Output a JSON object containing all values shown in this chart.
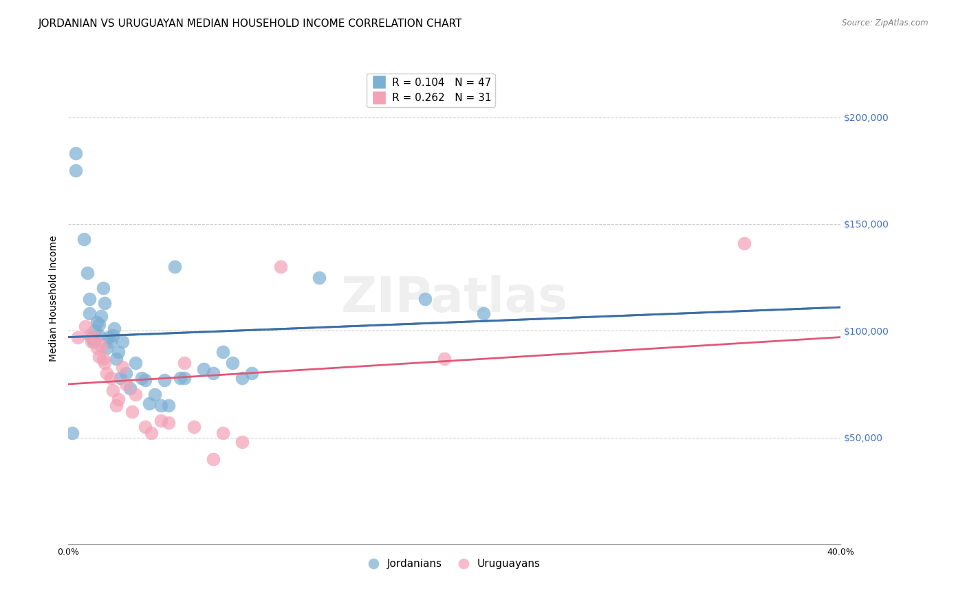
{
  "title": "JORDANIAN VS URUGUAYAN MEDIAN HOUSEHOLD INCOME CORRELATION CHART",
  "source": "Source: ZipAtlas.com",
  "xlabel_bottom": "",
  "ylabel": "Median Household Income",
  "xlim": [
    0.0,
    0.4
  ],
  "ylim": [
    0,
    230000
  ],
  "xticks": [
    0.0,
    0.05,
    0.1,
    0.15,
    0.2,
    0.25,
    0.3,
    0.35,
    0.4
  ],
  "xtick_labels": [
    "0.0%",
    "",
    "",
    "",
    "",
    "",
    "",
    "",
    "40.0%"
  ],
  "ytick_labels_right": [
    "$50,000",
    "$100,000",
    "$150,000",
    "$200,000"
  ],
  "ytick_values_right": [
    50000,
    100000,
    150000,
    200000
  ],
  "legend_entries": [
    {
      "label": "R = 0.104   N = 47",
      "color": "#7bafd4"
    },
    {
      "label": "R = 0.262   N = 31",
      "color": "#f4a0b5"
    }
  ],
  "jordanians_x": [
    0.002,
    0.004,
    0.004,
    0.008,
    0.01,
    0.011,
    0.011,
    0.012,
    0.013,
    0.014,
    0.015,
    0.016,
    0.016,
    0.017,
    0.018,
    0.019,
    0.02,
    0.021,
    0.022,
    0.023,
    0.024,
    0.025,
    0.026,
    0.027,
    0.028,
    0.03,
    0.032,
    0.035,
    0.038,
    0.04,
    0.042,
    0.045,
    0.048,
    0.05,
    0.052,
    0.055,
    0.058,
    0.06,
    0.07,
    0.075,
    0.08,
    0.085,
    0.09,
    0.095,
    0.13,
    0.185,
    0.215
  ],
  "jordanians_y": [
    52000,
    175000,
    183000,
    143000,
    127000,
    115000,
    108000,
    97000,
    95000,
    100000,
    104000,
    98000,
    103000,
    107000,
    120000,
    113000,
    92000,
    97000,
    95000,
    98000,
    101000,
    87000,
    90000,
    78000,
    95000,
    80000,
    73000,
    85000,
    78000,
    77000,
    66000,
    70000,
    65000,
    77000,
    65000,
    130000,
    78000,
    78000,
    82000,
    80000,
    90000,
    85000,
    78000,
    80000,
    125000,
    115000,
    108000
  ],
  "uruguayans_x": [
    0.005,
    0.009,
    0.011,
    0.012,
    0.014,
    0.015,
    0.016,
    0.017,
    0.018,
    0.019,
    0.02,
    0.022,
    0.023,
    0.025,
    0.026,
    0.028,
    0.03,
    0.033,
    0.035,
    0.04,
    0.043,
    0.048,
    0.052,
    0.06,
    0.065,
    0.075,
    0.08,
    0.09,
    0.11,
    0.195,
    0.35
  ],
  "uruguayans_y": [
    97000,
    102000,
    98000,
    95000,
    97000,
    92000,
    88000,
    93000,
    87000,
    85000,
    80000,
    78000,
    72000,
    65000,
    68000,
    83000,
    75000,
    62000,
    70000,
    55000,
    52000,
    58000,
    57000,
    85000,
    55000,
    40000,
    52000,
    48000,
    130000,
    87000,
    141000
  ],
  "jordanians_trend_x": [
    0.0,
    0.4
  ],
  "jordanians_trend_y_intercept": 97000,
  "jordanians_trend_slope": 35000,
  "uruguayans_trend_x": [
    0.0,
    0.4
  ],
  "uruguayans_trend_y_intercept": 75000,
  "uruguayans_trend_slope": 55000,
  "watermark": "ZIPatlas",
  "background_color": "#ffffff",
  "jordan_color": "#7bafd4",
  "uruguay_color": "#f4a0b5",
  "jordan_line_color": "#3a6ea5",
  "uruguay_line_color": "#e05878",
  "jordan_dash_color": "#a0b8d0",
  "grid_color": "#cccccc",
  "title_fontsize": 11,
  "axis_label_fontsize": 10,
  "tick_fontsize": 9,
  "right_tick_color": "#4472c4"
}
